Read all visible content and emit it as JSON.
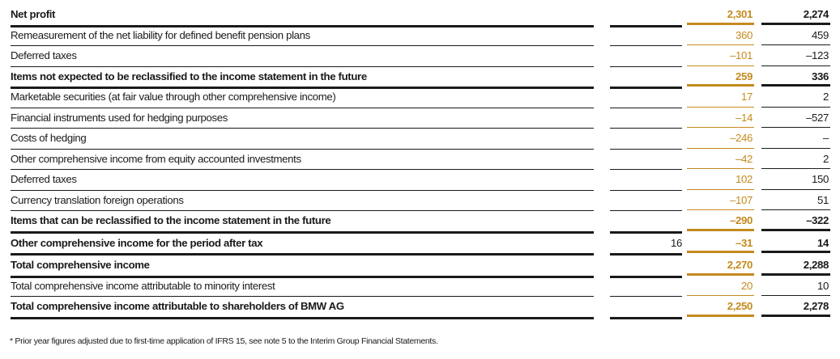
{
  "rows": [
    {
      "label": "Net profit",
      "note": "",
      "current": "2,301",
      "prior": "2,274"
    },
    {
      "label": "Remeasurement of the net liability for defined benefit pension plans",
      "note": "",
      "current": "360",
      "prior": "459"
    },
    {
      "label": "Deferred taxes",
      "note": "",
      "current": "–101",
      "prior": "–123"
    },
    {
      "label": "Items not expected to be reclassified to the income statement in the future",
      "note": "",
      "current": "259",
      "prior": "336"
    },
    {
      "label": "Marketable securities (at fair value through other comprehensive income)",
      "note": "",
      "current": "17",
      "prior": "2"
    },
    {
      "label": "Financial instruments used for hedging purposes",
      "note": "",
      "current": "–14",
      "prior": "–527"
    },
    {
      "label": "Costs of hedging",
      "note": "",
      "current": "–246",
      "prior": "–"
    },
    {
      "label": "Other comprehensive income from equity accounted investments",
      "note": "",
      "current": "–42",
      "prior": "2"
    },
    {
      "label": "Deferred taxes",
      "note": "",
      "current": "102",
      "prior": "150"
    },
    {
      "label": "Currency translation foreign operations",
      "note": "",
      "current": "–107",
      "prior": "51"
    },
    {
      "label": "Items that can be reclassified to the income statement in the future",
      "note": "",
      "current": "–290",
      "prior": "–322"
    },
    {
      "label": "Other comprehensive income for the period after tax",
      "note": "16",
      "current": "–31",
      "prior": "14"
    },
    {
      "label": "Total comprehensive income",
      "note": "",
      "current": "2,270",
      "prior": "2,288"
    },
    {
      "label": "Total comprehensive income attributable to minority interest",
      "note": "",
      "current": "20",
      "prior": "10"
    },
    {
      "label": "Total comprehensive income attributable to shareholders of BMW AG",
      "note": "",
      "current": "2,250",
      "prior": "2,278"
    }
  ],
  "footnote": "* Prior year figures adjusted due to first-time application of IFRS 15, see note 5 to the Interim Group Financial Statements.",
  "colors": {
    "accent": "#c48a1e",
    "text": "#1a1a1a"
  }
}
